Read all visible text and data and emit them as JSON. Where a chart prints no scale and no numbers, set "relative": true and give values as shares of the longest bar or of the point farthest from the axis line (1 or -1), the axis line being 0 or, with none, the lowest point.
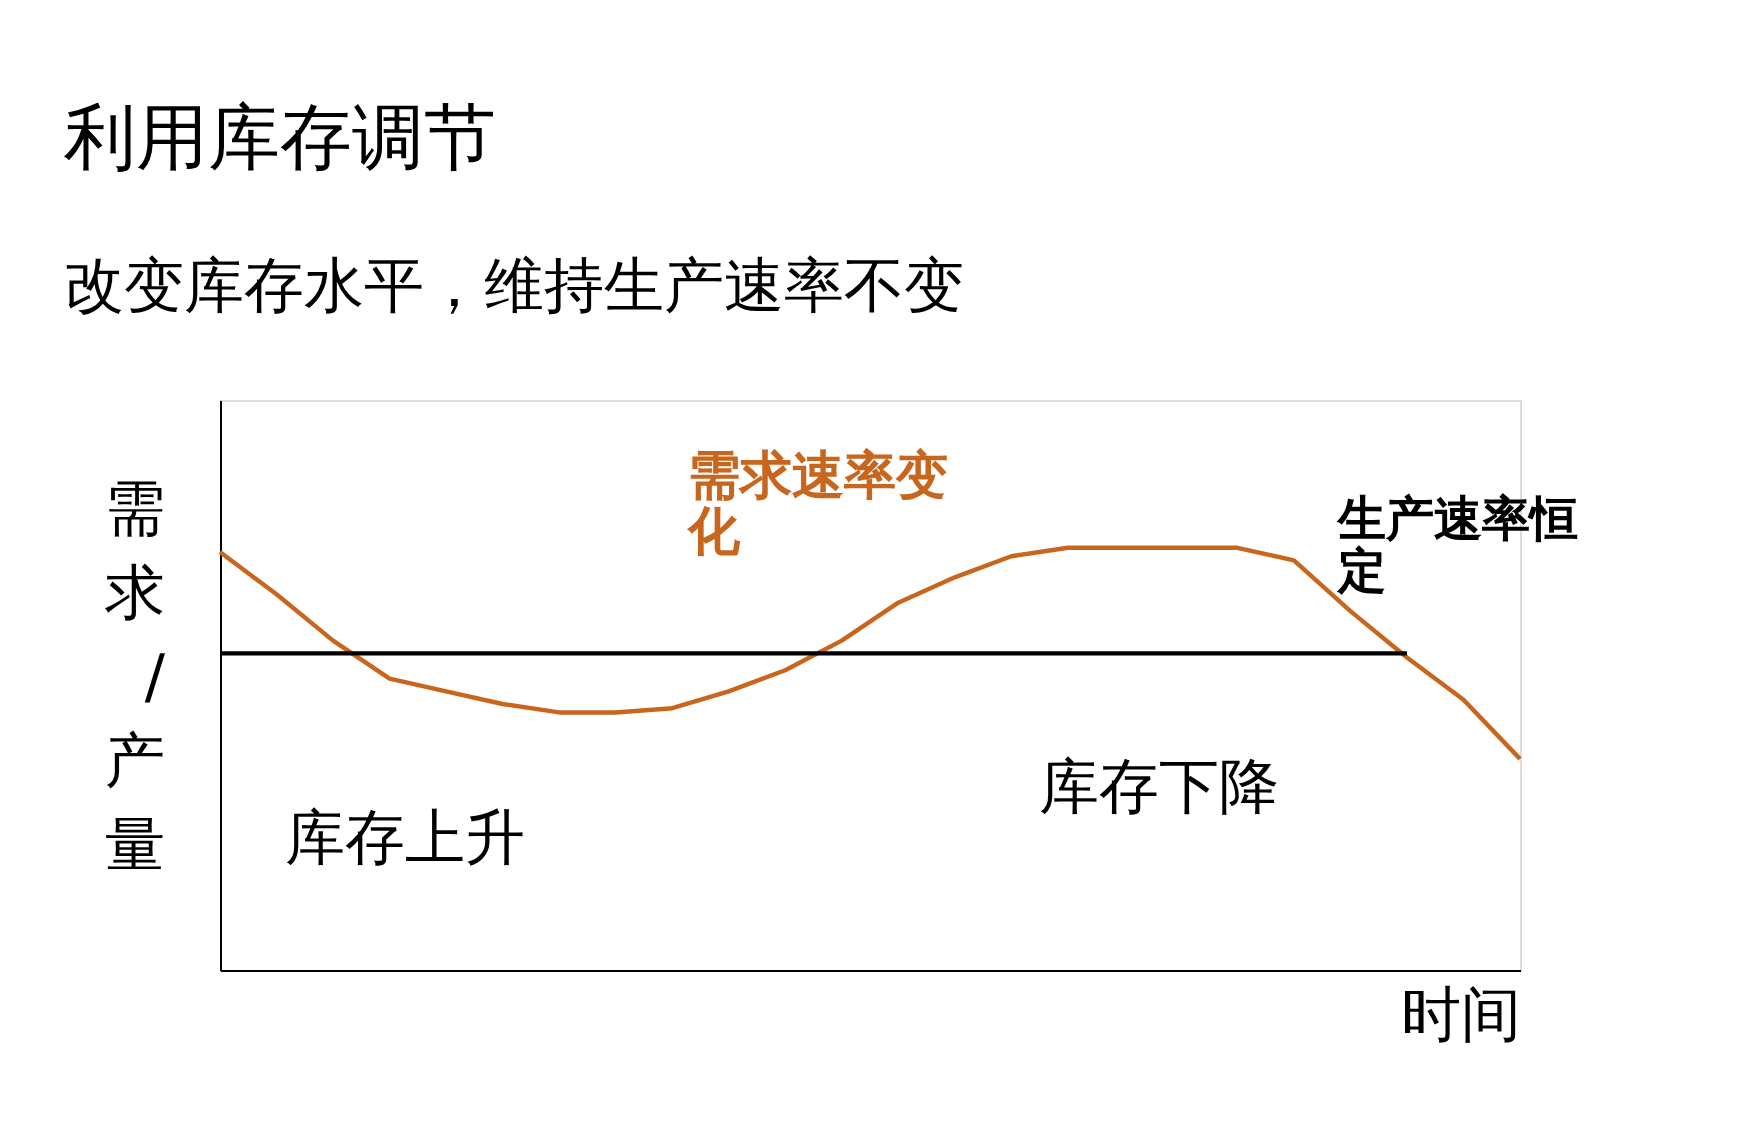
{
  "chart_data": {
    "type": "line",
    "title": "利用库存调节",
    "subtitle": "改变库存水平，维持生产速率不变",
    "xlabel": "时间",
    "ylabel": "需求/产量",
    "relative": true,
    "tick_labels": false,
    "marker": "none",
    "line_style": "solid",
    "categories": [
      null,
      null,
      null,
      null,
      null,
      null,
      null,
      null,
      null,
      null,
      null,
      null,
      null,
      null,
      null,
      null,
      null,
      null,
      null,
      null,
      null,
      null,
      null,
      null
    ],
    "series": [
      {
        "color": "#c8661e",
        "values": [
          0.99,
          0.89,
          0.78,
          0.69,
          0.66,
          0.63,
          0.61,
          0.61,
          0.62,
          0.66,
          0.71,
          0.78,
          0.87,
          0.93,
          0.98,
          1.0,
          1.0,
          1.0,
          1.0,
          0.97,
          0.85,
          0.74,
          0.64,
          0.5
        ]
      },
      {
        "color": "#000000",
        "values": [
          0.75,
          0.75,
          0.75,
          0.75,
          0.75,
          0.75,
          0.75,
          0.75,
          0.75,
          0.75,
          0.75,
          0.75,
          0.75,
          0.75,
          0.75,
          0.75,
          0.75,
          0.75,
          0.75,
          0.75,
          0.75,
          0.75,
          null,
          null
        ]
      }
    ],
    "annotations": [
      "需求速率变化",
      "生产速率恒定",
      "库存上升",
      "库存下降"
    ]
  }
}
